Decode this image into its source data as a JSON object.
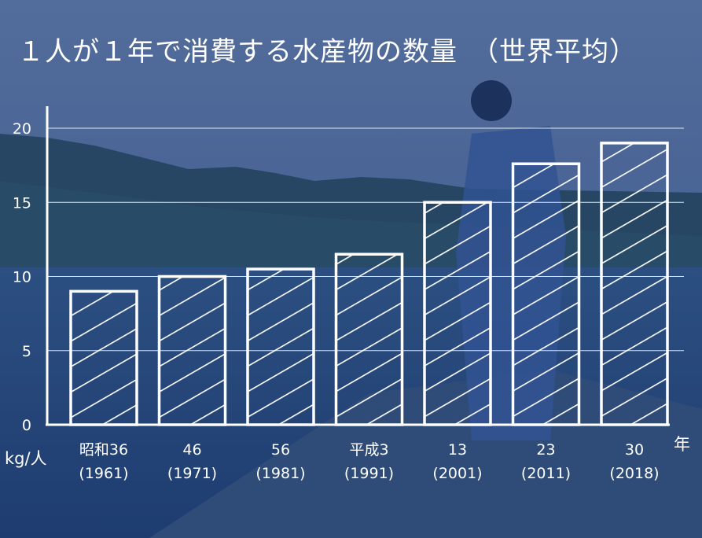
{
  "title": "１人が１年で消費する水産物の数量　（世界平均）",
  "colors": {
    "bar_stroke": "#ffffff",
    "grid": "#ffffff",
    "text": "#ffffff",
    "bg_sky": "#5f7ba8",
    "bg_mountain": "#27485a",
    "bg_water": "#24467a"
  },
  "chart_data": {
    "type": "bar",
    "title": "１人が１年で消費する水産物の数量　（世界平均）",
    "ylabel": "kg/人",
    "xlabel": "年",
    "ylim": [
      0,
      20
    ],
    "yticks": [
      "0",
      "5",
      "10",
      "15",
      "20"
    ],
    "grid": true,
    "categories": [
      "昭和36",
      "46",
      "56",
      "平成3",
      "13",
      "23",
      "30"
    ],
    "sublabels": [
      "(1961)",
      "(1971)",
      "(1981)",
      "(1991)",
      "(2001)",
      "(2011)",
      "(2018)"
    ],
    "values": [
      9.0,
      10.0,
      10.5,
      11.5,
      15.0,
      17.6,
      19.0
    ]
  }
}
